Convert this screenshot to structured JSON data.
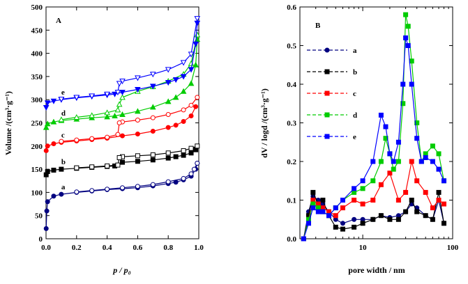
{
  "chart_data": [
    {
      "type": "line",
      "panel_label": "A",
      "xlabel": "p / p₀",
      "ylabel": "Volume /(cm³·g⁻¹)",
      "xlim": [
        0.0,
        1.0
      ],
      "ylim": [
        0,
        500
      ],
      "x_ticks": [
        "0.0",
        "0.2",
        "0.4",
        "0.6",
        "0.8",
        "1.0"
      ],
      "y_ticks": [
        "0",
        "50",
        "100",
        "150",
        "200",
        "250",
        "300",
        "350",
        "400",
        "450",
        "500"
      ],
      "grid": false,
      "series": [
        {
          "name": "a",
          "color": "#000080",
          "marker": "circle",
          "adsorption": [
            [
              0.001,
              22
            ],
            [
              0.005,
              60
            ],
            [
              0.01,
              80
            ],
            [
              0.05,
              92
            ],
            [
              0.1,
              96
            ],
            [
              0.2,
              100
            ],
            [
              0.3,
              103
            ],
            [
              0.4,
              106
            ],
            [
              0.5,
              108
            ],
            [
              0.6,
              110
            ],
            [
              0.7,
              114
            ],
            [
              0.8,
              119
            ],
            [
              0.85,
              122
            ],
            [
              0.9,
              127
            ],
            [
              0.95,
              135
            ],
            [
              0.98,
              150
            ],
            [
              0.99,
              163
            ]
          ],
          "desorption": [
            [
              0.99,
              163
            ],
            [
              0.97,
              150
            ],
            [
              0.95,
              140
            ],
            [
              0.9,
              130
            ],
            [
              0.8,
              123
            ],
            [
              0.7,
              117
            ],
            [
              0.6,
              113
            ],
            [
              0.5,
              110
            ],
            [
              0.4,
              107
            ],
            [
              0.3,
              104
            ],
            [
              0.2,
              101
            ]
          ]
        },
        {
          "name": "b",
          "color": "#000000",
          "marker": "square",
          "adsorption": [
            [
              0.001,
              138
            ],
            [
              0.01,
              145
            ],
            [
              0.05,
              148
            ],
            [
              0.1,
              150
            ],
            [
              0.2,
              152
            ],
            [
              0.3,
              154
            ],
            [
              0.4,
              156
            ],
            [
              0.45,
              157
            ],
            [
              0.5,
              165
            ],
            [
              0.6,
              167
            ],
            [
              0.7,
              170
            ],
            [
              0.8,
              174
            ],
            [
              0.85,
              177
            ],
            [
              0.9,
              180
            ],
            [
              0.95,
              185
            ],
            [
              0.98,
              192
            ]
          ],
          "desorption": [
            [
              0.99,
              200
            ],
            [
              0.95,
              195
            ],
            [
              0.9,
              190
            ],
            [
              0.8,
              185
            ],
            [
              0.7,
              181
            ],
            [
              0.6,
              179
            ],
            [
              0.5,
              177
            ],
            [
              0.48,
              175
            ],
            [
              0.47,
              159
            ],
            [
              0.4,
              157
            ],
            [
              0.3,
              155
            ],
            [
              0.2,
              153
            ]
          ]
        },
        {
          "name": "c",
          "color": "#ff0000",
          "marker": "circle",
          "adsorption": [
            [
              0.001,
              190
            ],
            [
              0.01,
              200
            ],
            [
              0.05,
              205
            ],
            [
              0.1,
              208
            ],
            [
              0.2,
              211
            ],
            [
              0.3,
              214
            ],
            [
              0.4,
              217
            ],
            [
              0.5,
              222
            ],
            [
              0.6,
              226
            ],
            [
              0.7,
              232
            ],
            [
              0.8,
              240
            ],
            [
              0.85,
              245
            ],
            [
              0.9,
              253
            ],
            [
              0.95,
              265
            ],
            [
              0.98,
              285
            ]
          ],
          "desorption": [
            [
              0.99,
              305
            ],
            [
              0.95,
              288
            ],
            [
              0.9,
              278
            ],
            [
              0.8,
              268
            ],
            [
              0.7,
              261
            ],
            [
              0.6,
              256
            ],
            [
              0.5,
              252
            ],
            [
              0.48,
              250
            ],
            [
              0.47,
              225
            ],
            [
              0.4,
              219
            ],
            [
              0.3,
              216
            ],
            [
              0.2,
              213
            ],
            [
              0.1,
              210
            ]
          ]
        },
        {
          "name": "d",
          "color": "#00cc00",
          "marker": "triangle",
          "adsorption": [
            [
              0.001,
              240
            ],
            [
              0.01,
              248
            ],
            [
              0.05,
              252
            ],
            [
              0.1,
              255
            ],
            [
              0.2,
              258
            ],
            [
              0.3,
              261
            ],
            [
              0.4,
              263
            ],
            [
              0.45,
              265
            ],
            [
              0.5,
              268
            ],
            [
              0.6,
              275
            ],
            [
              0.7,
              284
            ],
            [
              0.8,
              296
            ],
            [
              0.85,
              305
            ],
            [
              0.9,
              318
            ],
            [
              0.95,
              335
            ],
            [
              0.98,
              375
            ],
            [
              0.99,
              430
            ]
          ],
          "desorption": [
            [
              0.99,
              440
            ],
            [
              0.95,
              378
            ],
            [
              0.9,
              355
            ],
            [
              0.8,
              340
            ],
            [
              0.7,
              328
            ],
            [
              0.6,
              318
            ],
            [
              0.5,
              305
            ],
            [
              0.48,
              290
            ],
            [
              0.47,
              278
            ],
            [
              0.4,
              272
            ],
            [
              0.3,
              266
            ],
            [
              0.2,
              262
            ],
            [
              0.1,
              257
            ]
          ]
        },
        {
          "name": "e",
          "color": "#0000ff",
          "marker": "triangle-down",
          "adsorption": [
            [
              0.001,
              283
            ],
            [
              0.01,
              293
            ],
            [
              0.05,
              297
            ],
            [
              0.1,
              300
            ],
            [
              0.2,
              304
            ],
            [
              0.3,
              307
            ],
            [
              0.4,
              310
            ],
            [
              0.45,
              312
            ],
            [
              0.5,
              316
            ],
            [
              0.6,
              322
            ],
            [
              0.7,
              329
            ],
            [
              0.8,
              337
            ],
            [
              0.85,
              343
            ],
            [
              0.9,
              350
            ],
            [
              0.95,
              365
            ],
            [
              0.98,
              420
            ],
            [
              0.99,
              465
            ]
          ],
          "desorption": [
            [
              0.99,
              475
            ],
            [
              0.95,
              398
            ],
            [
              0.9,
              380
            ],
            [
              0.8,
              365
            ],
            [
              0.7,
              355
            ],
            [
              0.6,
              347
            ],
            [
              0.5,
              340
            ],
            [
              0.48,
              335
            ],
            [
              0.47,
              316
            ],
            [
              0.4,
              312
            ],
            [
              0.3,
              308
            ],
            [
              0.2,
              305
            ],
            [
              0.1,
              301
            ]
          ]
        }
      ]
    },
    {
      "type": "line",
      "panel_label": "B",
      "xlabel": "pore width / nm",
      "ylabel": "dV / logd /(cm³·g⁻¹)",
      "x_scale": "log",
      "xlim": [
        2,
        100
      ],
      "ylim": [
        0,
        0.6
      ],
      "x_ticks": [
        "10",
        "100"
      ],
      "y_ticks": [
        "0.0",
        "0.1",
        "0.2",
        "0.3",
        "0.4",
        "0.5",
        "0.6"
      ],
      "grid": false,
      "legend_placement": "top-left",
      "series": [
        {
          "name": "a",
          "color": "#000080",
          "marker": "circle",
          "x": [
            2.2,
            2.5,
            2.8,
            3.2,
            3.6,
            4.2,
            5,
            6,
            8,
            10,
            13,
            16,
            20,
            25,
            30,
            35,
            40,
            50,
            60,
            70,
            80
          ],
          "y": [
            0.0,
            0.07,
            0.11,
            0.1,
            0.09,
            0.07,
            0.05,
            0.04,
            0.05,
            0.05,
            0.05,
            0.06,
            0.055,
            0.06,
            0.07,
            0.09,
            0.08,
            0.06,
            0.05,
            0.1,
            0.04
          ]
        },
        {
          "name": "b",
          "color": "#000000",
          "marker": "square",
          "x": [
            2.2,
            2.5,
            2.8,
            3.2,
            3.6,
            4.2,
            5,
            6,
            8,
            10,
            13,
            16,
            20,
            25,
            30,
            35,
            40,
            50,
            60,
            70,
            80
          ],
          "y": [
            0.0,
            0.06,
            0.12,
            0.09,
            0.1,
            0.06,
            0.03,
            0.025,
            0.03,
            0.04,
            0.05,
            0.06,
            0.05,
            0.05,
            0.07,
            0.1,
            0.07,
            0.06,
            0.05,
            0.12,
            0.04
          ]
        },
        {
          "name": "c",
          "color": "#ff0000",
          "marker": "square",
          "x": [
            2.2,
            2.5,
            2.8,
            3.2,
            3.6,
            4.2,
            5,
            6,
            8,
            10,
            13,
            16,
            20,
            25,
            30,
            35,
            40,
            50,
            60,
            70,
            80
          ],
          "y": [
            0.0,
            0.05,
            0.1,
            0.09,
            0.08,
            0.07,
            0.06,
            0.08,
            0.1,
            0.09,
            0.1,
            0.14,
            0.17,
            0.1,
            0.12,
            0.2,
            0.15,
            0.12,
            0.08,
            0.1,
            0.09
          ]
        },
        {
          "name": "d",
          "color": "#00cc00",
          "marker": "square",
          "x": [
            2.2,
            2.5,
            2.8,
            3.2,
            3.6,
            4.2,
            5,
            6,
            8,
            10,
            13,
            16,
            18,
            20,
            22,
            25,
            28,
            30,
            32,
            35,
            40,
            45,
            50,
            60,
            70,
            80
          ],
          "y": [
            0.0,
            0.05,
            0.09,
            0.08,
            0.07,
            0.06,
            0.08,
            0.1,
            0.12,
            0.13,
            0.15,
            0.2,
            0.26,
            0.22,
            0.18,
            0.2,
            0.35,
            0.58,
            0.55,
            0.46,
            0.3,
            0.2,
            0.22,
            0.24,
            0.22,
            0.15
          ]
        },
        {
          "name": "e",
          "color": "#0000ff",
          "marker": "square",
          "x": [
            2.2,
            2.5,
            2.8,
            3.2,
            3.6,
            4.2,
            5,
            6,
            8,
            10,
            13,
            16,
            18,
            20,
            22,
            25,
            28,
            30,
            32,
            35,
            40,
            45,
            50,
            60,
            70,
            80
          ],
          "y": [
            0.0,
            0.04,
            0.08,
            0.07,
            0.07,
            0.06,
            0.08,
            0.1,
            0.13,
            0.15,
            0.2,
            0.32,
            0.29,
            0.22,
            0.2,
            0.25,
            0.4,
            0.52,
            0.5,
            0.4,
            0.26,
            0.2,
            0.21,
            0.2,
            0.18,
            0.15
          ]
        }
      ]
    }
  ]
}
